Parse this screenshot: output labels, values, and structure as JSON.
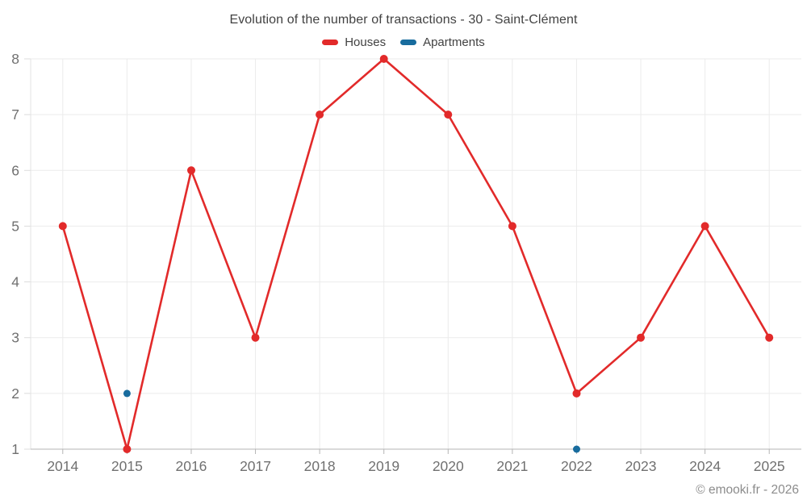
{
  "title": "Evolution of the number of transactions - 30 - Saint-Clément",
  "footer": {
    "copyright": "© emooki.fr - 2026"
  },
  "colors": {
    "houses": "#e22a2a",
    "apartments": "#186c9e",
    "grid": "#ebebeb",
    "axis": "#b5b5b5",
    "tick_label": "#707070",
    "title_text": "#424242",
    "copyright_text": "#8c8c8c"
  },
  "chart_data": {
    "type": "line",
    "title": "Evolution of the number of transactions - 30 - Saint-Clément",
    "categories": [
      "2014",
      "2015",
      "2016",
      "2017",
      "2018",
      "2019",
      "2020",
      "2021",
      "2022",
      "2023",
      "2024",
      "2025"
    ],
    "series": [
      {
        "name": "Houses",
        "color": "#e22a2a",
        "marker_radius": 5,
        "line_width": 2.6,
        "values": [
          5,
          1,
          6,
          3,
          7,
          8,
          7,
          5,
          2,
          3,
          5,
          3
        ]
      },
      {
        "name": "Apartments",
        "color": "#186c9e",
        "marker_radius": 4.5,
        "line_width": 2.6,
        "values": [
          null,
          2,
          null,
          null,
          null,
          null,
          null,
          null,
          1,
          null,
          null,
          null
        ]
      }
    ],
    "xlabel": "",
    "ylabel": "",
    "ylim": [
      1,
      8
    ],
    "yticks": [
      1,
      2,
      3,
      4,
      5,
      6,
      7,
      8
    ],
    "grid": true,
    "legend_position": "top",
    "grid_color": "#ebebeb",
    "axis_color": "#b5b5b5",
    "tick_label_color": "#707070",
    "tick_label_size": 17.5
  }
}
